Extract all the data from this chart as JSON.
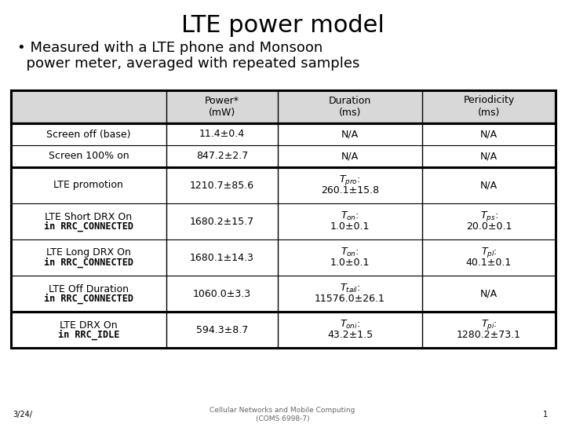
{
  "title": "LTE power model",
  "subtitle_line1": "• Measured with a LTE phone and Monsoon",
  "subtitle_line2": "  power meter, averaged with repeated samples",
  "footer": "Cellular Networks and Mobile Computing\n(COMS 6998-7)",
  "slide_label": "3/24/",
  "slide_num": "1",
  "bg_color": "#ffffff",
  "header_bg": "#d8d8d8",
  "col_headers": [
    "",
    "Power*\n(mW)",
    "Duration\n(ms)",
    "Periodicity\n(ms)"
  ],
  "rows": [
    {
      "label_lines": [
        "Screen off (base)"
      ],
      "label_bold": [
        false
      ],
      "power": "11.4±0.4",
      "duration": "N/A",
      "periodicity": "N/A",
      "group": 1
    },
    {
      "label_lines": [
        "Screen 100% on"
      ],
      "label_bold": [
        false
      ],
      "power": "847.2±2.7",
      "duration": "N/A",
      "periodicity": "N/A",
      "group": 1
    },
    {
      "label_lines": [
        "LTE promotion"
      ],
      "label_bold": [
        false
      ],
      "power": "1210.7±85.6",
      "duration": "$T_{pro}$:\n260.1±15.8",
      "periodicity": "N/A",
      "group": 2
    },
    {
      "label_lines": [
        "LTE Short DRX On",
        "in RRC_CONNECTED"
      ],
      "label_bold": [
        false,
        true
      ],
      "power": "1680.2±15.7",
      "duration": "$T_{on}$:\n1.0±0.1",
      "periodicity": "$T_{ps}$:\n20.0±0.1",
      "group": 2
    },
    {
      "label_lines": [
        "LTE Long DRX On",
        "in RRC_CONNECTED"
      ],
      "label_bold": [
        false,
        true
      ],
      "power": "1680.1±14.3",
      "duration": "$T_{on}$:\n1.0±0.1",
      "periodicity": "$T_{pl}$:\n40.1±0.1",
      "group": 2
    },
    {
      "label_lines": [
        "LTE Off Duration",
        "in RRC_CONNECTED"
      ],
      "label_bold": [
        false,
        true
      ],
      "power": "1060.0±3.3",
      "duration": "$T_{tail}$:\n11576.0±26.1",
      "periodicity": "N/A",
      "group": 2
    },
    {
      "label_lines": [
        "LTE DRX On",
        "in RRC_IDLE"
      ],
      "label_bold": [
        false,
        true
      ],
      "power": "594.3±8.7",
      "duration": "$T_{oni}$:\n43.2±1.5",
      "periodicity": "$T_{pi}$:\n1280.2±73.1",
      "group": 3
    }
  ]
}
